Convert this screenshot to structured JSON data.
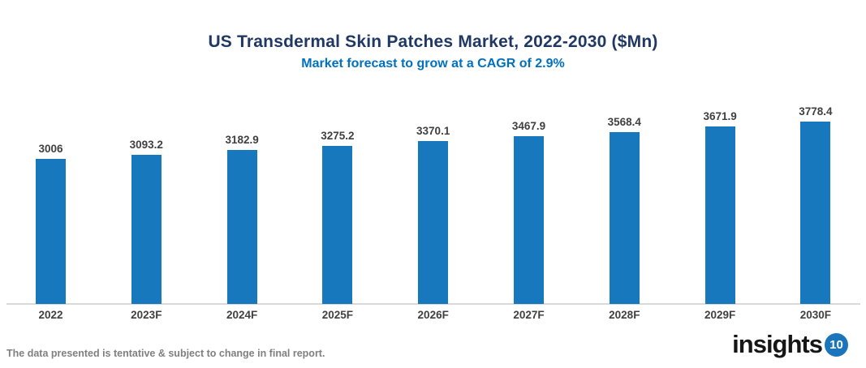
{
  "header": {
    "title": "US Transdermal Skin Patches Market, 2022-2030 ($Mn)",
    "subtitle": "Market forecast to grow at a CAGR of 2.9%"
  },
  "chart_data": {
    "type": "bar",
    "title": "US Transdermal Skin Patches Market, 2022-2030 ($Mn)",
    "subtitle": "Market forecast to grow at a CAGR of 2.9%",
    "categories": [
      "2022",
      "2023F",
      "2024F",
      "2025F",
      "2026F",
      "2027F",
      "2028F",
      "2029F",
      "2030F"
    ],
    "values": [
      3006,
      3093.2,
      3182.9,
      3275.2,
      3370.1,
      3467.9,
      3568.4,
      3671.9,
      3778.4
    ],
    "value_labels": [
      "3006",
      "3093.2",
      "3182.9",
      "3275.2",
      "3370.1",
      "3467.9",
      "3568.4",
      "3671.9",
      "3778.4"
    ],
    "xlabel": "",
    "ylabel": "",
    "ylim": [
      0,
      3778.4
    ],
    "grid": false,
    "legend_position": "none",
    "bar_color": "#1778BE",
    "data_label_color": "#404040"
  },
  "footer": {
    "note": "The data presented is tentative & subject to change in final report.",
    "logo_text": "insights",
    "logo_badge": "10"
  },
  "colors": {
    "title": "#1F3864",
    "subtitle": "#0070C0",
    "bar": "#1778BE",
    "axis_line": "#D9D9D9",
    "label": "#404040",
    "footer_text": "#808080",
    "logo_badge_bg": "#1B75BB"
  }
}
